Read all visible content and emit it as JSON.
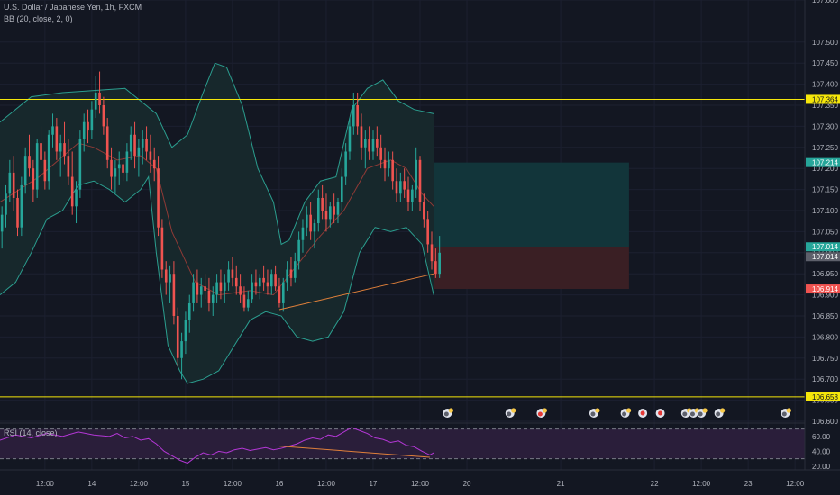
{
  "header": {
    "symbol_line": "U.S. Dollar / Japanese Yen, 1h, FXCM",
    "indicator_line": "BB (20, close, 2, 0)"
  },
  "rsi_legend": "RSI (14, close)",
  "colors": {
    "background": "#131722",
    "candle_up": "#26a69a",
    "candle_down": "#ef5350",
    "bb_band": "#2b9e8f",
    "bb_basis": "#8f3a36",
    "bb_fill": "#17282c",
    "hline": "#f5e60a",
    "trendline": "#e0803a",
    "profit_zone": "#12353a",
    "loss_zone": "#3a1f24",
    "rsi_line": "#b437d6",
    "rsi_band": "#2a1e3a"
  },
  "chart_data": {
    "type": "candlestick",
    "symbol": "USDJPY",
    "timeframe": "1h",
    "source": "FXCM",
    "y_range": [
      106.6,
      107.6
    ],
    "price_ticks": [
      "107.600",
      "107.500",
      "107.450",
      "107.400",
      "107.350",
      "107.300",
      "107.250",
      "107.200",
      "107.150",
      "107.100",
      "107.050",
      "107.000",
      "106.950",
      "106.900",
      "106.850",
      "106.800",
      "106.750",
      "106.700",
      "106.650",
      "106.600"
    ],
    "price_labels": [
      {
        "value": 107.364,
        "text": "107.364",
        "style": "yellow"
      },
      {
        "value": 107.214,
        "text": "107.214",
        "style": "teal"
      },
      {
        "value": 107.014,
        "text": "107.014",
        "style": "teal"
      },
      {
        "value": 107.014,
        "text": "107.014",
        "style": "gray"
      },
      {
        "value": 106.914,
        "text": "106.914",
        "style": "red"
      },
      {
        "value": 106.658,
        "text": "106.658",
        "style": "yellow"
      }
    ],
    "time_labels": [
      "12:00",
      "14",
      "12:00",
      "15",
      "12:00",
      "16",
      "12:00",
      "17",
      "12:00",
      "20",
      "21",
      "22",
      "12:00",
      "23",
      "12:00"
    ],
    "time_label_hours": [
      11.5,
      23.5,
      35.5,
      47.5,
      59.5,
      71.5,
      83.5,
      95.5,
      107.5,
      119.5,
      143.5,
      167.5,
      179.5,
      191.5,
      203.5
    ],
    "x_range": [
      0,
      206
    ],
    "horizontal_lines": [
      107.364,
      106.658
    ],
    "trendline_price": [
      {
        "t": 71.5,
        "p": 106.865
      },
      {
        "t": 111,
        "p": 106.95
      }
    ],
    "position": {
      "entry": 107.014,
      "target": 107.214,
      "stop": 106.914,
      "t_start": 111,
      "t_end": 161
    },
    "ohlc": [
      [
        107.05,
        107.11,
        107.01,
        107.09
      ],
      [
        107.09,
        107.16,
        107.06,
        107.14
      ],
      [
        107.14,
        107.22,
        107.12,
        107.19
      ],
      [
        107.19,
        107.23,
        107.1,
        107.13
      ],
      [
        107.13,
        107.15,
        107.04,
        107.06
      ],
      [
        107.06,
        107.18,
        107.04,
        107.16
      ],
      [
        107.16,
        107.25,
        107.14,
        107.23
      ],
      [
        107.23,
        107.28,
        107.18,
        107.2
      ],
      [
        107.2,
        107.22,
        107.12,
        107.15
      ],
      [
        107.15,
        107.27,
        107.13,
        107.26
      ],
      [
        107.26,
        107.3,
        107.2,
        107.22
      ],
      [
        107.22,
        107.24,
        107.15,
        107.17
      ],
      [
        107.17,
        107.29,
        107.15,
        107.28
      ],
      [
        107.28,
        107.33,
        107.25,
        107.3
      ],
      [
        107.3,
        107.32,
        107.22,
        107.24
      ],
      [
        107.24,
        107.28,
        107.18,
        107.26
      ],
      [
        107.26,
        107.31,
        107.21,
        107.23
      ],
      [
        107.23,
        107.27,
        107.16,
        107.18
      ],
      [
        107.18,
        107.24,
        107.09,
        107.11
      ],
      [
        107.11,
        107.17,
        107.07,
        107.15
      ],
      [
        107.15,
        107.29,
        107.13,
        107.27
      ],
      [
        107.27,
        107.33,
        107.24,
        107.31
      ],
      [
        107.31,
        107.34,
        107.26,
        107.29
      ],
      [
        107.29,
        107.36,
        107.27,
        107.34
      ],
      [
        107.34,
        107.42,
        107.32,
        107.38
      ],
      [
        107.38,
        107.43,
        107.33,
        107.35
      ],
      [
        107.35,
        107.37,
        107.28,
        107.3
      ],
      [
        107.3,
        107.32,
        107.2,
        107.22
      ],
      [
        107.22,
        107.25,
        107.15,
        107.18
      ],
      [
        107.18,
        107.22,
        107.14,
        107.2
      ],
      [
        107.2,
        107.24,
        107.16,
        107.21
      ],
      [
        107.21,
        107.23,
        107.17,
        107.19
      ],
      [
        107.19,
        107.26,
        107.17,
        107.24
      ],
      [
        107.24,
        107.3,
        107.22,
        107.28
      ],
      [
        107.28,
        107.31,
        107.2,
        107.23
      ],
      [
        107.23,
        107.27,
        107.18,
        107.25
      ],
      [
        107.25,
        107.29,
        107.21,
        107.27
      ],
      [
        107.27,
        107.3,
        107.22,
        107.24
      ],
      [
        107.24,
        107.28,
        107.19,
        107.22
      ],
      [
        107.22,
        107.25,
        107.17,
        107.2
      ],
      [
        107.2,
        107.23,
        107.04,
        107.06
      ],
      [
        107.06,
        107.08,
        106.94,
        106.96
      ],
      [
        106.96,
        106.98,
        106.9,
        106.93
      ],
      [
        106.93,
        106.97,
        106.88,
        106.95
      ],
      [
        106.95,
        106.98,
        106.83,
        106.85
      ],
      [
        106.85,
        106.87,
        106.73,
        106.75
      ],
      [
        106.75,
        106.81,
        106.7,
        106.79
      ],
      [
        106.79,
        106.86,
        106.76,
        106.84
      ],
      [
        106.84,
        106.9,
        106.81,
        106.88
      ],
      [
        106.88,
        106.95,
        106.86,
        106.93
      ],
      [
        106.93,
        106.96,
        106.88,
        106.9
      ],
      [
        106.9,
        106.94,
        106.87,
        106.92
      ],
      [
        106.92,
        106.95,
        106.89,
        106.91
      ],
      [
        106.91,
        106.94,
        106.86,
        106.88
      ],
      [
        106.88,
        106.92,
        106.85,
        106.9
      ],
      [
        106.9,
        106.95,
        106.88,
        106.93
      ],
      [
        106.93,
        106.96,
        106.89,
        106.91
      ],
      [
        106.91,
        106.95,
        106.88,
        106.93
      ],
      [
        106.93,
        106.98,
        106.91,
        106.96
      ],
      [
        106.96,
        106.99,
        106.92,
        106.94
      ],
      [
        106.94,
        106.97,
        106.9,
        106.92
      ],
      [
        106.92,
        106.95,
        106.88,
        106.9
      ],
      [
        106.9,
        106.92,
        106.86,
        106.87
      ],
      [
        106.87,
        106.91,
        106.86,
        106.89
      ],
      [
        106.89,
        106.95,
        106.88,
        106.93
      ],
      [
        106.93,
        106.96,
        106.9,
        106.92
      ],
      [
        106.92,
        106.95,
        106.89,
        106.94
      ],
      [
        106.94,
        106.97,
        106.91,
        106.93
      ],
      [
        106.93,
        106.96,
        106.9,
        106.92
      ],
      [
        106.92,
        106.96,
        106.9,
        106.95
      ],
      [
        106.95,
        106.97,
        106.91,
        106.92
      ],
      [
        106.92,
        106.94,
        106.87,
        106.88
      ],
      [
        106.88,
        106.94,
        106.86,
        106.93
      ],
      [
        106.93,
        106.98,
        106.91,
        106.96
      ],
      [
        106.96,
        106.99,
        106.92,
        106.94
      ],
      [
        106.94,
        107.0,
        106.93,
        106.98
      ],
      [
        106.98,
        107.05,
        106.96,
        107.03
      ],
      [
        107.03,
        107.08,
        107.0,
        107.06
      ],
      [
        107.06,
        107.11,
        107.04,
        107.09
      ],
      [
        107.09,
        107.12,
        107.03,
        107.05
      ],
      [
        107.05,
        107.08,
        107.01,
        107.07
      ],
      [
        107.07,
        107.15,
        107.05,
        107.13
      ],
      [
        107.13,
        107.16,
        107.08,
        107.1
      ],
      [
        107.1,
        107.14,
        107.05,
        107.08
      ],
      [
        107.08,
        107.12,
        107.06,
        107.11
      ],
      [
        107.11,
        107.14,
        107.07,
        107.09
      ],
      [
        107.09,
        107.13,
        107.07,
        107.12
      ],
      [
        107.12,
        107.2,
        107.1,
        107.18
      ],
      [
        107.18,
        107.26,
        107.16,
        107.24
      ],
      [
        107.24,
        107.32,
        107.22,
        107.3
      ],
      [
        107.3,
        107.38,
        107.28,
        107.35
      ],
      [
        107.35,
        107.38,
        107.28,
        107.3
      ],
      [
        107.3,
        107.33,
        107.22,
        107.25
      ],
      [
        107.25,
        107.29,
        107.2,
        107.27
      ],
      [
        107.27,
        107.3,
        107.22,
        107.24
      ],
      [
        107.24,
        107.29,
        107.22,
        107.27
      ],
      [
        107.27,
        107.3,
        107.23,
        107.25
      ],
      [
        107.25,
        107.28,
        107.2,
        107.22
      ],
      [
        107.22,
        107.25,
        107.17,
        107.2
      ],
      [
        107.2,
        107.24,
        107.18,
        107.22
      ],
      [
        107.22,
        107.24,
        107.15,
        107.17
      ],
      [
        107.17,
        107.2,
        107.12,
        107.14
      ],
      [
        107.14,
        107.19,
        107.12,
        107.17
      ],
      [
        107.17,
        107.2,
        107.13,
        107.15
      ],
      [
        107.15,
        107.18,
        107.1,
        107.12
      ],
      [
        107.12,
        107.16,
        107.1,
        107.15
      ],
      [
        107.15,
        107.25,
        107.13,
        107.22
      ],
      [
        107.22,
        107.23,
        107.1,
        107.12
      ],
      [
        107.12,
        107.14,
        107.06,
        107.08
      ],
      [
        107.08,
        107.1,
        107.0,
        107.02
      ],
      [
        107.02,
        107.05,
        106.96,
        106.98
      ],
      [
        106.98,
        107.01,
        106.94,
        106.95
      ],
      [
        106.95,
        107.04,
        106.94,
        107.0
      ]
    ],
    "bb": {
      "upper": [
        [
          0,
          107.31
        ],
        [
          8,
          107.37
        ],
        [
          16,
          107.38
        ],
        [
          24,
          107.385
        ],
        [
          32,
          107.39
        ],
        [
          40,
          107.33
        ],
        [
          44,
          107.25
        ],
        [
          48,
          107.28
        ],
        [
          52,
          107.38
        ],
        [
          55,
          107.45
        ],
        [
          58,
          107.44
        ],
        [
          62,
          107.35
        ],
        [
          66,
          107.2
        ],
        [
          70,
          107.12
        ],
        [
          72,
          107.02
        ],
        [
          74,
          107.03
        ],
        [
          78,
          107.12
        ],
        [
          82,
          107.17
        ],
        [
          86,
          107.18
        ],
        [
          90,
          107.34
        ],
        [
          94,
          107.39
        ],
        [
          98,
          107.41
        ],
        [
          102,
          107.36
        ],
        [
          106,
          107.34
        ],
        [
          111,
          107.33
        ]
      ],
      "lower": [
        [
          0,
          106.9
        ],
        [
          4,
          106.93
        ],
        [
          8,
          107.0
        ],
        [
          12,
          107.08
        ],
        [
          16,
          107.1
        ],
        [
          20,
          107.16
        ],
        [
          24,
          107.17
        ],
        [
          28,
          107.15
        ],
        [
          32,
          107.12
        ],
        [
          36,
          107.15
        ],
        [
          38,
          107.18
        ],
        [
          40,
          107.0
        ],
        [
          43,
          106.78
        ],
        [
          46,
          106.72
        ],
        [
          48,
          106.69
        ],
        [
          52,
          106.7
        ],
        [
          56,
          106.72
        ],
        [
          60,
          106.78
        ],
        [
          64,
          106.84
        ],
        [
          68,
          106.86
        ],
        [
          72,
          106.85
        ],
        [
          76,
          106.8
        ],
        [
          80,
          106.79
        ],
        [
          84,
          106.8
        ],
        [
          88,
          106.86
        ],
        [
          92,
          107.0
        ],
        [
          96,
          107.06
        ],
        [
          100,
          107.05
        ],
        [
          104,
          107.06
        ],
        [
          108,
          107.02
        ],
        [
          111,
          106.9
        ]
      ],
      "basis": [
        [
          0,
          107.12
        ],
        [
          10,
          107.18
        ],
        [
          20,
          107.26
        ],
        [
          24,
          107.25
        ],
        [
          30,
          107.22
        ],
        [
          36,
          107.23
        ],
        [
          40,
          107.2
        ],
        [
          44,
          107.05
        ],
        [
          50,
          106.93
        ],
        [
          56,
          106.9
        ],
        [
          64,
          106.91
        ],
        [
          70,
          106.9
        ],
        [
          76,
          106.97
        ],
        [
          82,
          107.04
        ],
        [
          88,
          107.1
        ],
        [
          94,
          107.2
        ],
        [
          100,
          107.22
        ],
        [
          104,
          107.2
        ],
        [
          108,
          107.14
        ],
        [
          111,
          107.11
        ]
      ]
    },
    "rsi": {
      "levels": [
        70,
        30
      ],
      "axis_labels": [
        "60.00",
        "40.00",
        "20.00"
      ],
      "axis_values": [
        60,
        40,
        20
      ],
      "y_range": [
        15,
        78
      ],
      "values": [
        [
          0,
          55
        ],
        [
          4,
          62
        ],
        [
          8,
          58
        ],
        [
          12,
          64
        ],
        [
          16,
          60
        ],
        [
          20,
          66
        ],
        [
          24,
          62
        ],
        [
          28,
          60
        ],
        [
          30,
          64
        ],
        [
          32,
          58
        ],
        [
          34,
          60
        ],
        [
          36,
          55
        ],
        [
          38,
          57
        ],
        [
          40,
          50
        ],
        [
          42,
          40
        ],
        [
          44,
          34
        ],
        [
          46,
          28
        ],
        [
          48,
          24
        ],
        [
          50,
          32
        ],
        [
          52,
          38
        ],
        [
          54,
          35
        ],
        [
          56,
          40
        ],
        [
          58,
          38
        ],
        [
          60,
          42
        ],
        [
          62,
          44
        ],
        [
          64,
          41
        ],
        [
          66,
          43
        ],
        [
          68,
          45
        ],
        [
          70,
          42
        ],
        [
          72,
          44
        ],
        [
          74,
          47
        ],
        [
          76,
          50
        ],
        [
          78,
          55
        ],
        [
          80,
          58
        ],
        [
          82,
          56
        ],
        [
          84,
          62
        ],
        [
          86,
          60
        ],
        [
          88,
          66
        ],
        [
          90,
          72
        ],
        [
          92,
          68
        ],
        [
          94,
          64
        ],
        [
          96,
          58
        ],
        [
          98,
          56
        ],
        [
          100,
          52
        ],
        [
          102,
          54
        ],
        [
          104,
          48
        ],
        [
          106,
          46
        ],
        [
          108,
          40
        ],
        [
          110,
          35
        ],
        [
          111,
          38
        ]
      ],
      "trendline": [
        {
          "t": 71.5,
          "v": 47
        },
        {
          "t": 110,
          "v": 32
        }
      ]
    },
    "event_markers": [
      {
        "t": 114.5,
        "kind": "flag-green"
      },
      {
        "t": 130.5,
        "kind": "flag-green"
      },
      {
        "t": 138.5,
        "kind": "flag-red"
      },
      {
        "t": 152,
        "kind": "flag-green"
      },
      {
        "t": 160,
        "kind": "flag-green"
      },
      {
        "t": 164.5,
        "kind": "dot-red"
      },
      {
        "t": 169,
        "kind": "dot-red"
      },
      {
        "t": 175.5,
        "kind": "flag-green"
      },
      {
        "t": 177.5,
        "kind": "flag-green"
      },
      {
        "t": 179.5,
        "kind": "flag-green"
      },
      {
        "t": 184,
        "kind": "flag-green"
      },
      {
        "t": 201,
        "kind": "flag-green"
      }
    ]
  }
}
